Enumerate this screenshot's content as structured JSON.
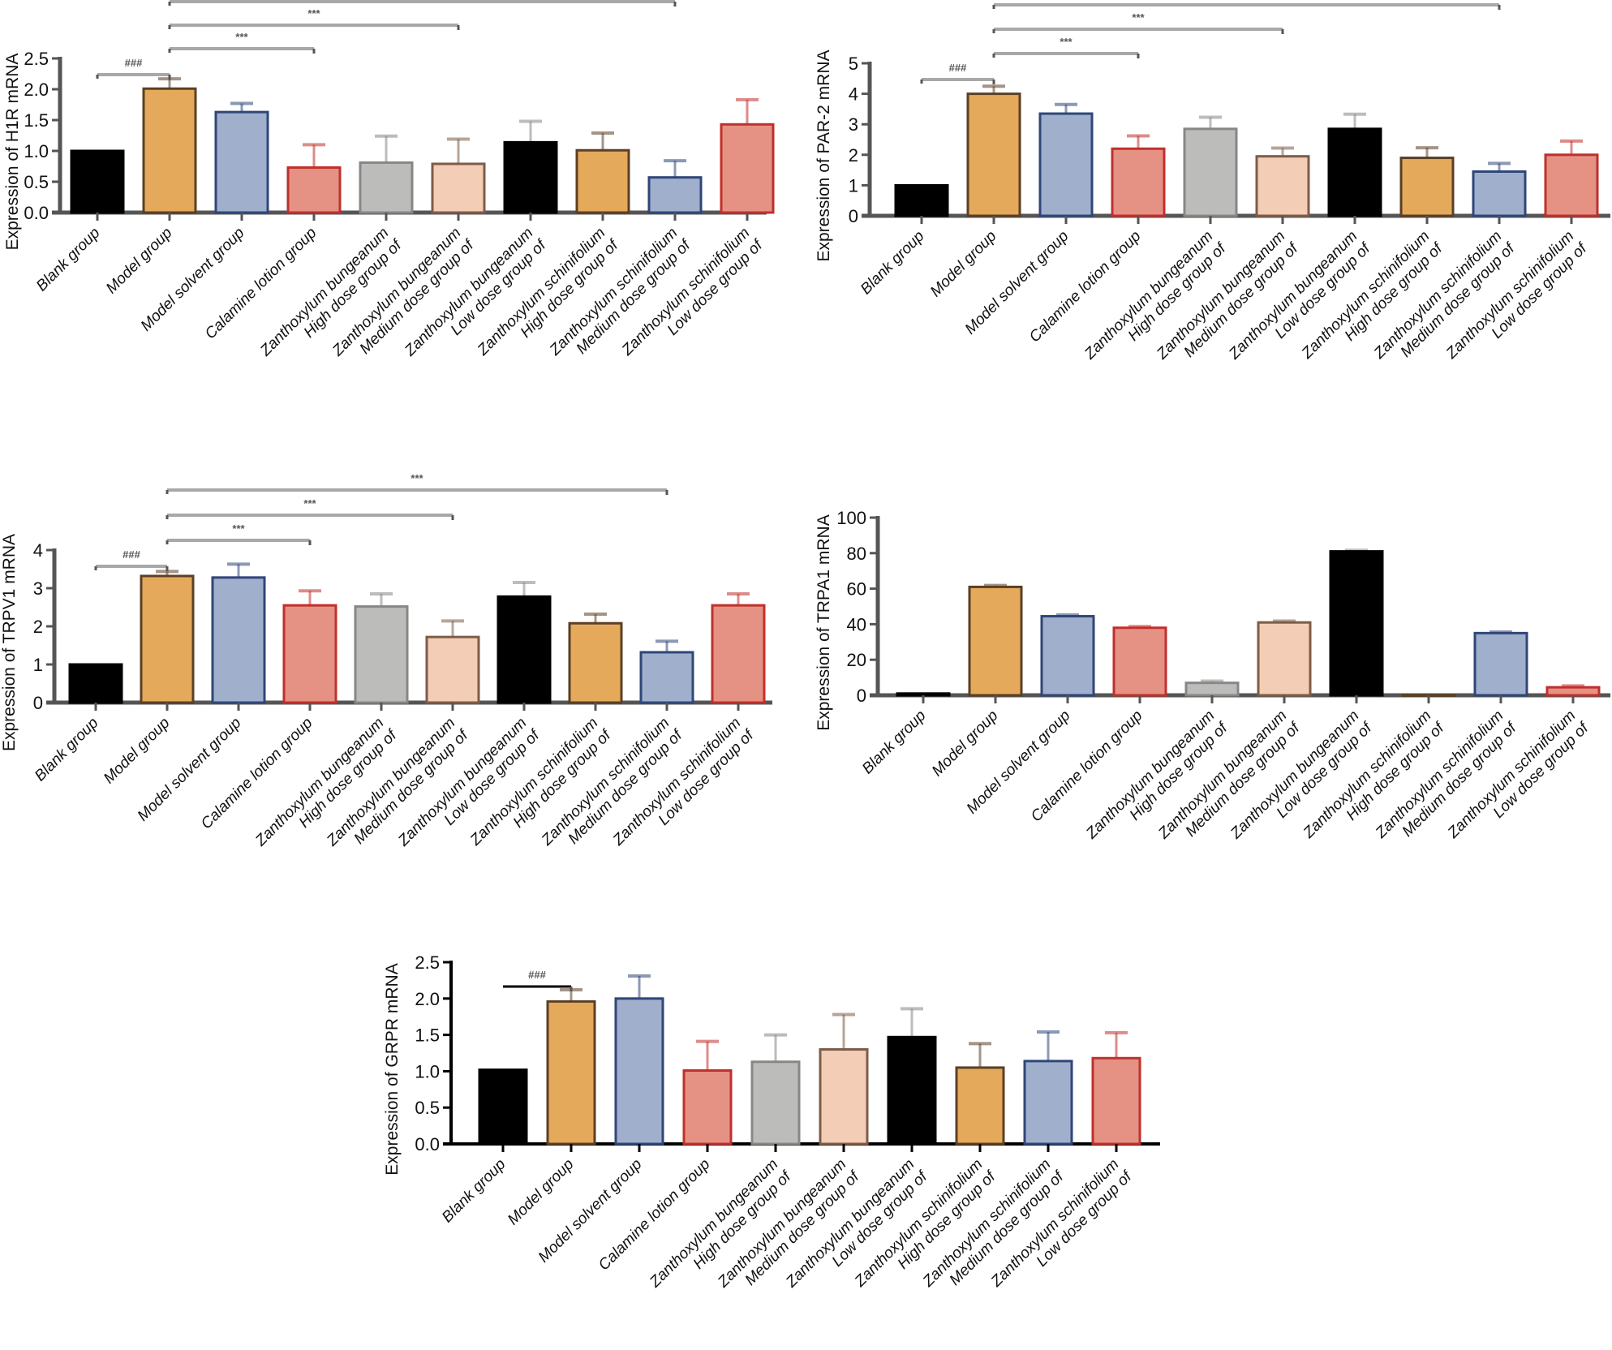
{
  "figure": {
    "groups": [
      [
        "Blank group"
      ],
      [
        "Model group"
      ],
      [
        "Model solvent group"
      ],
      [
        "Calamine lotion group"
      ],
      [
        "High dose group of",
        "Zanthoxylum bungeanum"
      ],
      [
        "Medium dose group of",
        "Zanthoxylum bungeanum"
      ],
      [
        "Low dose group of",
        "Zanthoxylum bungeanum"
      ],
      [
        "High dose group of",
        "Zanthoxylum schinifolium"
      ],
      [
        "Medium dose group of",
        "Zanthoxylum schinifolium"
      ],
      [
        "Low dose group of",
        "Zanthoxylum schinifolium"
      ]
    ],
    "bar_colors": [
      {
        "fill": "#000000",
        "stroke": "#000000"
      },
      {
        "fill": "#e5a95c",
        "stroke": "#5a4024"
      },
      {
        "fill": "#a0b0cc",
        "stroke": "#2f4678"
      },
      {
        "fill": "#e59285",
        "stroke": "#c0302c"
      },
      {
        "fill": "#bcbdbb",
        "stroke": "#878785"
      },
      {
        "fill": "#f3cdb6",
        "stroke": "#7d5c48"
      },
      {
        "fill": "#000000",
        "stroke": "#000000"
      },
      {
        "fill": "#e5a95c",
        "stroke": "#5a4024"
      },
      {
        "fill": "#a0b0cc",
        "stroke": "#2f4678"
      },
      {
        "fill": "#e59285",
        "stroke": "#c0302c"
      }
    ]
  },
  "chart_data": [
    {
      "id": "h1r",
      "type": "bar",
      "title": "",
      "xlabel": "",
      "ylabel": "Expression of H1R mRNA",
      "ylim": [
        0,
        2.5
      ],
      "yticks": [
        "0.0",
        "0.5",
        "1.0",
        "1.5",
        "2.0",
        "2.5"
      ],
      "ytick_values": [
        0,
        0.5,
        1.0,
        1.5,
        2.0,
        2.5
      ],
      "categories": [
        "Blank group",
        "Model group",
        "Model solvent group",
        "Calamine lotion group",
        "High dose group of Zanthoxylum bungeanum",
        "Medium dose group of Zanthoxylum bungeanum",
        "Low dose group of Zanthoxylum bungeanum",
        "High dose group of Zanthoxylum schinifolium",
        "Medium dose group of Zanthoxylum schinifolium",
        "Low dose group of Zanthoxylum schinifolium"
      ],
      "values": [
        1.0,
        2.01,
        1.63,
        0.73,
        0.81,
        0.79,
        1.14,
        1.01,
        0.57,
        1.43
      ],
      "errors": [
        0.0,
        0.16,
        0.14,
        0.37,
        0.43,
        0.4,
        0.34,
        0.28,
        0.27,
        0.4
      ],
      "significance": [
        {
          "from": 0,
          "to": 1,
          "label": "###"
        },
        {
          "from": 1,
          "to": 3,
          "label": "***"
        },
        {
          "from": 1,
          "to": 5,
          "label": "***"
        },
        {
          "from": 1,
          "to": 8,
          "label": "***"
        }
      ]
    },
    {
      "id": "par2",
      "type": "bar",
      "title": "",
      "xlabel": "",
      "ylabel": "Expression of PAR-2 mRNA",
      "ylim": [
        0,
        5
      ],
      "yticks": [
        "0",
        "1",
        "2",
        "3",
        "4",
        "5"
      ],
      "ytick_values": [
        0,
        1,
        2,
        3,
        4,
        5
      ],
      "categories": [
        "Blank group",
        "Model group",
        "Model solvent group",
        "Calamine lotion group",
        "High dose group of Zanthoxylum bungeanum",
        "Medium dose group of Zanthoxylum bungeanum",
        "Low dose group of Zanthoxylum bungeanum",
        "High dose group of Zanthoxylum schinifolium",
        "Medium dose group of Zanthoxylum schinifolium",
        "Low dose group of Zanthoxylum schinifolium"
      ],
      "values": [
        1.0,
        4.0,
        3.35,
        2.2,
        2.85,
        1.95,
        2.85,
        1.9,
        1.45,
        2.0
      ],
      "errors": [
        0.0,
        0.25,
        0.3,
        0.42,
        0.38,
        0.27,
        0.48,
        0.33,
        0.27,
        0.45
      ],
      "significance": [
        {
          "from": 0,
          "to": 1,
          "label": "###"
        },
        {
          "from": 1,
          "to": 3,
          "label": "***"
        },
        {
          "from": 1,
          "to": 5,
          "label": "***"
        },
        {
          "from": 1,
          "to": 8,
          "label": "***"
        }
      ]
    },
    {
      "id": "trpv1",
      "type": "bar",
      "title": "",
      "xlabel": "",
      "ylabel": "Expression of TRPV1 mRNA",
      "ylim": [
        0,
        4
      ],
      "yticks": [
        "0",
        "1",
        "2",
        "3",
        "4"
      ],
      "ytick_values": [
        0,
        1,
        2,
        3,
        4
      ],
      "categories": [
        "Blank group",
        "Model group",
        "Model solvent group",
        "Calamine lotion group",
        "High dose group of Zanthoxylum bungeanum",
        "Medium dose group of Zanthoxylum bungeanum",
        "Low dose group of Zanthoxylum bungeanum",
        "High dose group of Zanthoxylum schinifolium",
        "Medium dose group of Zanthoxylum schinifolium",
        "Low dose group of Zanthoxylum schinifolium"
      ],
      "values": [
        1.0,
        3.32,
        3.28,
        2.55,
        2.52,
        1.72,
        2.78,
        2.08,
        1.32,
        2.55
      ],
      "errors": [
        0.0,
        0.12,
        0.35,
        0.38,
        0.33,
        0.42,
        0.37,
        0.24,
        0.29,
        0.3
      ],
      "significance": [
        {
          "from": 0,
          "to": 1,
          "label": "###"
        },
        {
          "from": 1,
          "to": 3,
          "label": "***"
        },
        {
          "from": 1,
          "to": 5,
          "label": "***"
        },
        {
          "from": 1,
          "to": 8,
          "label": "***"
        }
      ]
    },
    {
      "id": "trpa1",
      "type": "bar",
      "title": "",
      "xlabel": "",
      "ylabel": "Expression of TRPA1 mRNA",
      "ylim": [
        0,
        100
      ],
      "yticks": [
        "0",
        "20",
        "40",
        "60",
        "80",
        "100"
      ],
      "ytick_values": [
        0,
        20,
        40,
        60,
        80,
        100
      ],
      "categories": [
        "Blank group",
        "Model group",
        "Model solvent group",
        "Calamine lotion group",
        "High dose group of Zanthoxylum bungeanum",
        "Medium dose group of Zanthoxylum bungeanum",
        "Low dose group of Zanthoxylum bungeanum",
        "High dose group of Zanthoxylum schinifolium",
        "Medium dose group of Zanthoxylum schinifolium",
        "Low dose group of Zanthoxylum schinifolium"
      ],
      "values": [
        1.0,
        61.0,
        44.5,
        38.0,
        7.0,
        41.0,
        81.0,
        0.0,
        35.0,
        4.5
      ],
      "errors": [
        0.0,
        0.8,
        0.7,
        0.7,
        1.0,
        0.8,
        0.6,
        0.0,
        0.6,
        0.8
      ],
      "significance": []
    },
    {
      "id": "grpr",
      "type": "bar",
      "title": "",
      "xlabel": "",
      "ylabel": "Expression of GRPR mRNA",
      "ylim": [
        0,
        2.5
      ],
      "yticks": [
        "0.0",
        "0.5",
        "1.0",
        "1.5",
        "2.0",
        "2.5"
      ],
      "ytick_values": [
        0,
        0.5,
        1.0,
        1.5,
        2.0,
        2.5
      ],
      "categories": [
        "Blank group",
        "Model group",
        "Model solvent group",
        "Calamine lotion group",
        "High dose group of Zanthoxylum bungeanum",
        "Medium dose group of Zanthoxylum bungeanum",
        "Low dose group of Zanthoxylum bungeanum",
        "High dose group of Zanthoxylum schinifolium",
        "Medium dose group of Zanthoxylum schinifolium",
        "Low dose group of Zanthoxylum schinifolium"
      ],
      "values": [
        1.02,
        1.96,
        2.0,
        1.01,
        1.13,
        1.3,
        1.47,
        1.05,
        1.14,
        1.18
      ],
      "errors": [
        0.0,
        0.16,
        0.31,
        0.4,
        0.37,
        0.48,
        0.39,
        0.33,
        0.4,
        0.35
      ],
      "significance": [
        {
          "from": 0,
          "to": 1,
          "label": "###"
        }
      ]
    }
  ]
}
